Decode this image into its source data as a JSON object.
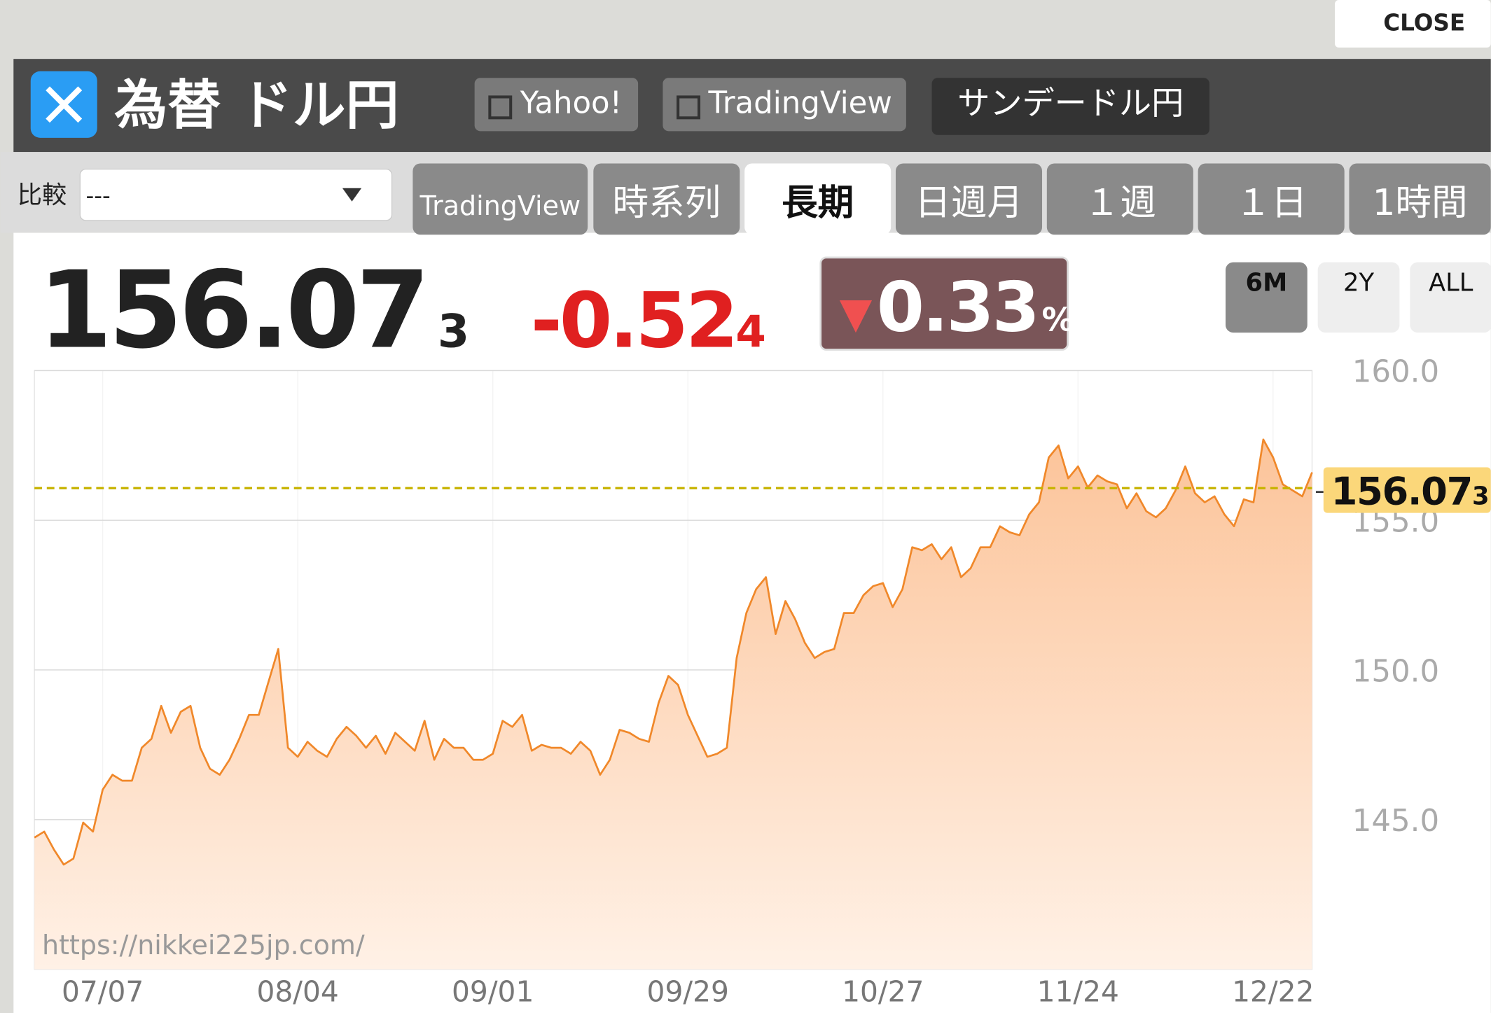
{
  "header": {
    "close": "CLOSE",
    "title": "為替 ドル円",
    "links": [
      "Yahoo!",
      "TradingView",
      "サンデードル円"
    ]
  },
  "compare": {
    "label": "比較",
    "selected": "---"
  },
  "tabs": [
    "TradingView",
    "時系列",
    "長期",
    "日週月",
    "１週",
    "１日",
    "1時間"
  ],
  "active_tab": 2,
  "quote": {
    "price_main": "156.07",
    "price_sub": "3",
    "change_main": "-0.52",
    "change_sub": "4",
    "percent": "0.33",
    "percent_unit": "%"
  },
  "ranges": [
    "6M",
    "2Y",
    "ALL"
  ],
  "active_range": 0,
  "chart_data": {
    "type": "area",
    "color": "#f0882a",
    "categories": [
      null,
      null,
      null,
      null,
      null,
      null,
      null,
      "07/07",
      null,
      null,
      null,
      null,
      null,
      null,
      null,
      null,
      null,
      null,
      null,
      null,
      null,
      null,
      null,
      null,
      null,
      null,
      null,
      "08/04",
      null,
      null,
      null,
      null,
      null,
      null,
      null,
      null,
      null,
      null,
      null,
      null,
      null,
      null,
      null,
      null,
      null,
      null,
      null,
      "09/01",
      null,
      null,
      null,
      null,
      null,
      null,
      null,
      null,
      null,
      null,
      null,
      null,
      null,
      null,
      null,
      null,
      null,
      null,
      null,
      "09/29",
      null,
      null,
      null,
      null,
      null,
      null,
      null,
      null,
      null,
      null,
      null,
      null,
      null,
      null,
      null,
      null,
      null,
      null,
      null,
      "10/27",
      null,
      null,
      null,
      null,
      null,
      null,
      null,
      null,
      null,
      null,
      null,
      null,
      null,
      null,
      null,
      null,
      null,
      null,
      null,
      "11/24",
      null,
      null,
      null,
      null,
      null,
      null,
      null,
      null,
      null,
      null,
      null,
      null,
      null,
      null,
      null,
      null,
      null,
      null,
      null,
      "12/22",
      null,
      null,
      null,
      null
    ],
    "values": [
      144.4,
      144.6,
      144.0,
      143.5,
      143.7,
      144.9,
      144.6,
      146.0,
      146.5,
      146.3,
      146.3,
      147.4,
      147.7,
      148.8,
      147.9,
      148.6,
      148.8,
      147.4,
      146.7,
      146.5,
      147.0,
      147.7,
      148.5,
      148.5,
      149.6,
      150.7,
      147.4,
      147.1,
      147.6,
      147.3,
      147.1,
      147.7,
      148.1,
      147.8,
      147.4,
      147.8,
      147.2,
      147.9,
      147.6,
      147.3,
      148.3,
      147.0,
      147.7,
      147.4,
      147.4,
      147.0,
      147.0,
      147.2,
      148.3,
      148.1,
      148.5,
      147.3,
      147.5,
      147.4,
      147.4,
      147.2,
      147.6,
      147.3,
      146.5,
      147.0,
      148.0,
      147.9,
      147.7,
      147.6,
      148.9,
      149.8,
      149.5,
      148.5,
      147.8,
      147.1,
      147.2,
      147.4,
      150.4,
      151.9,
      152.7,
      153.1,
      151.2,
      152.3,
      151.7,
      150.9,
      150.4,
      150.6,
      150.7,
      151.9,
      151.9,
      152.5,
      152.8,
      152.9,
      152.1,
      152.7,
      154.1,
      154.0,
      154.2,
      153.7,
      154.1,
      153.1,
      153.4,
      154.1,
      154.1,
      154.8,
      154.6,
      154.5,
      155.2,
      155.6,
      157.1,
      157.5,
      156.4,
      156.8,
      156.1,
      156.5,
      156.3,
      156.2,
      155.4,
      155.9,
      155.3,
      155.1,
      155.4,
      156.0,
      156.8,
      155.9,
      155.6,
      155.8,
      155.2,
      154.8,
      155.7,
      155.6,
      157.7,
      157.1,
      156.2,
      156.0,
      155.8,
      156.6
    ],
    "ylim": [
      140,
      160
    ],
    "yticks": [
      {
        "value": 145,
        "label": "145.0"
      },
      {
        "value": 150,
        "label": "150.0"
      },
      {
        "value": 155,
        "label": "155.0"
      },
      {
        "value": 160,
        "label": "160.0"
      }
    ],
    "grid": true,
    "reference_line": {
      "value": 156.073,
      "label_main": "156.07",
      "label_sub": "3"
    },
    "watermark": "https://nikkei225jp.com/"
  }
}
